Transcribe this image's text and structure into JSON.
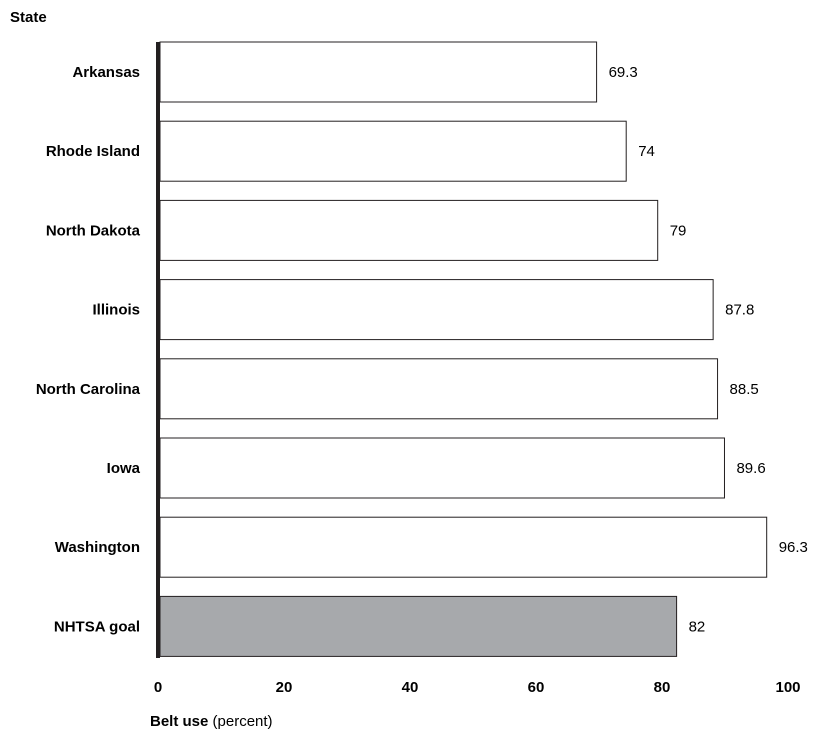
{
  "chart_data": {
    "type": "bar",
    "orientation": "horizontal",
    "categories": [
      "Arkansas",
      "Rhode Island",
      "North Dakota",
      "Illinois",
      "North Carolina",
      "Iowa",
      "Washington",
      "NHTSA goal"
    ],
    "values": [
      69.3,
      74,
      79,
      87.8,
      88.5,
      89.6,
      96.3,
      82
    ],
    "value_labels": [
      "69.3",
      "74",
      "79",
      "87.8",
      "88.5",
      "89.6",
      "96.3",
      "82"
    ],
    "highlight_category": "NHTSA goal",
    "colors": {
      "bar_fill": "#ffffff",
      "highlight_fill": "#a7a9ac",
      "stroke": "#231f20"
    },
    "xlim": [
      0,
      100
    ],
    "xticks": [
      0,
      20,
      40,
      60,
      80,
      100
    ],
    "ylabel": "State",
    "xlabel_bold": "Belt use",
    "xlabel_rest": " (percent)",
    "grid": false,
    "legend": "none"
  }
}
